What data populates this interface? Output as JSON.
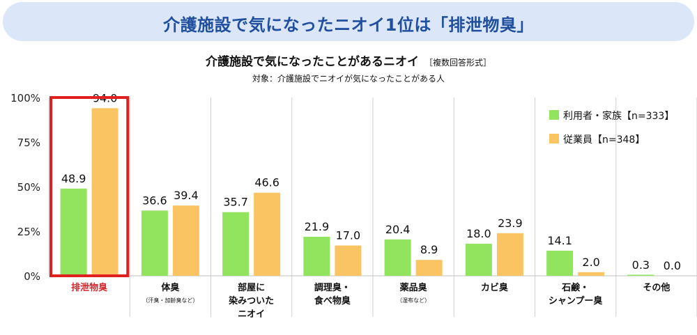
{
  "banner": {
    "title": "介護施設で気になったニオイ1位は「排泄物臭」"
  },
  "chart_data": {
    "type": "bar",
    "title": "介護施設で気になったことがあるニオイ",
    "title_note": "［複数回答形式］",
    "subtitle": "対象：介護施設でニオイが気になったことがある人",
    "ylim": [
      0,
      100
    ],
    "y_ticks": [
      "0%",
      "25%",
      "50%",
      "75%",
      "100%"
    ],
    "categories": [
      {
        "lines": [
          "排泄物臭"
        ],
        "note": "",
        "highlight": true
      },
      {
        "lines": [
          "体臭"
        ],
        "note": "（汗臭・加齢臭など）",
        "highlight": false
      },
      {
        "lines": [
          "部屋に",
          "染みついた",
          "ニオイ"
        ],
        "note": "",
        "highlight": false
      },
      {
        "lines": [
          "調理臭・",
          "食べ物臭"
        ],
        "note": "",
        "highlight": false
      },
      {
        "lines": [
          "薬品臭"
        ],
        "note": "（湿布など）",
        "highlight": false
      },
      {
        "lines": [
          "カビ臭"
        ],
        "note": "",
        "highlight": false
      },
      {
        "lines": [
          "石鹸・",
          "シャンプー臭"
        ],
        "note": "",
        "highlight": false
      },
      {
        "lines": [
          "その他"
        ],
        "note": "",
        "highlight": false
      }
    ],
    "series": [
      {
        "name": "利用者・家族【n=333】",
        "color": "#92e35e",
        "values": [
          48.9,
          36.6,
          35.7,
          21.9,
          20.4,
          18.0,
          14.1,
          0.3
        ]
      },
      {
        "name": "従業員【n=348】",
        "color": "#fbc463",
        "values": [
          94.0,
          39.4,
          46.6,
          17.0,
          8.9,
          23.9,
          2.0,
          0.0
        ]
      }
    ],
    "highlight_color": "#e0201f",
    "grid_color": "#cfcfcf"
  }
}
